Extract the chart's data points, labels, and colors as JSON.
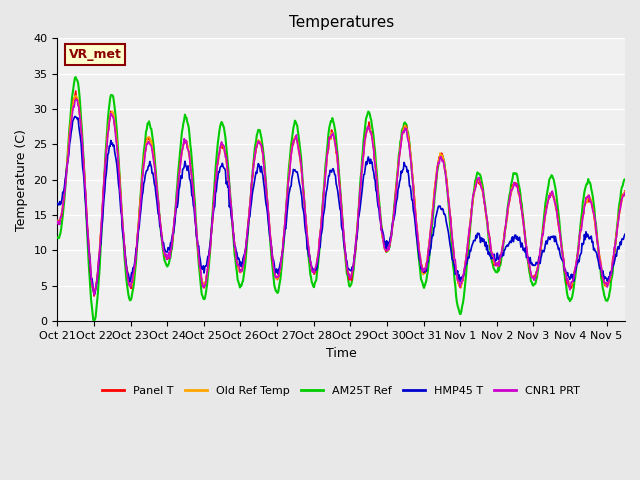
{
  "title": "Temperatures",
  "xlabel": "Time",
  "ylabel": "Temperature (C)",
  "ylim": [
    0,
    40
  ],
  "xlim_days": 15.5,
  "background_color": "#e8e8e8",
  "plot_bg_color": "#f0f0f0",
  "annotation_text": "VR_met",
  "annotation_bg": "#ffffcc",
  "annotation_border": "#8b0000",
  "x_tick_labels": [
    "Oct 21",
    "Oct 22",
    "Oct 23",
    "Oct 24",
    "Oct 25",
    "Oct 26",
    "Oct 27",
    "Oct 28",
    "Oct 29",
    "Oct 30",
    "Oct 31",
    "Nov 1",
    "Nov 2",
    "Nov 3",
    "Nov 4",
    "Nov 5"
  ],
  "series": {
    "panel_t": {
      "color": "#ff0000",
      "label": "Panel T",
      "lw": 1.2
    },
    "old_ref": {
      "color": "#ffa500",
      "label": "Old Ref Temp",
      "lw": 1.2
    },
    "am25t": {
      "color": "#00cc00",
      "label": "AM25T Ref",
      "lw": 1.5
    },
    "hmp45": {
      "color": "#0000cc",
      "label": "HMP45 T",
      "lw": 1.2
    },
    "cnr1": {
      "color": "#cc00cc",
      "label": "CNR1 PRT",
      "lw": 1.2
    }
  },
  "am25_mins": [
    12,
    0,
    3,
    8,
    3,
    5,
    4,
    5,
    5,
    10,
    5,
    1,
    7,
    5,
    3,
    3
  ],
  "am25_maxs": [
    33,
    36,
    28,
    28,
    30,
    26,
    28,
    28,
    29,
    30,
    26,
    21,
    21,
    21,
    20,
    20
  ],
  "panel_mins": [
    14,
    4,
    5,
    9,
    5,
    7,
    6,
    7,
    6,
    10,
    7,
    5,
    8,
    6,
    5,
    5
  ],
  "panel_maxs": [
    31,
    33,
    26,
    26,
    25,
    25,
    26,
    26,
    27,
    28,
    27,
    20,
    20,
    19,
    17,
    18
  ],
  "hmp_mins": [
    17,
    4,
    6,
    10,
    7,
    8,
    7,
    7,
    7,
    11,
    7,
    6,
    9,
    8,
    6,
    6
  ],
  "hmp_maxs": [
    29,
    29,
    22,
    22,
    22,
    22,
    22,
    21,
    22,
    24,
    20,
    12,
    12,
    12,
    12,
    12
  ],
  "cnr1_mins": [
    14,
    4,
    5,
    9,
    5,
    7,
    6,
    7,
    6,
    10,
    7,
    5,
    8,
    6,
    5,
    5
  ],
  "cnr1_maxs": [
    30,
    33,
    25,
    26,
    25,
    25,
    26,
    26,
    27,
    28,
    26,
    20,
    20,
    19,
    17,
    18
  ]
}
